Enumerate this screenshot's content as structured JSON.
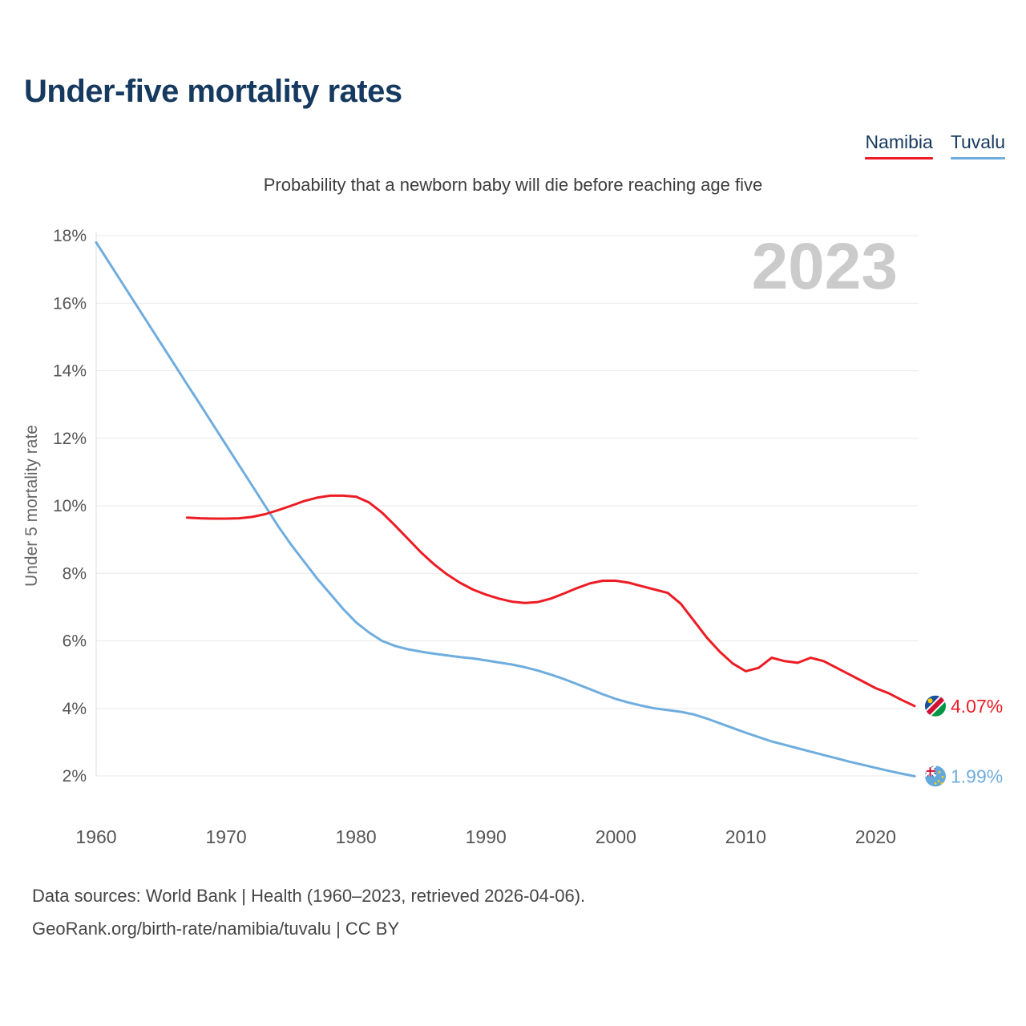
{
  "footer": {
    "line1": "Data sources: World Bank | Health (1960–2023, retrieved 2026-04-06).",
    "line2": "GeoRank.org/birth-rate/namibia/tuvalu | CC BY"
  },
  "chart_data": {
    "type": "line",
    "title": "Under-five mortality rates",
    "subtitle": "Probability that a newborn baby will die before reaching age five",
    "ylabel": "Under 5 mortality rate",
    "year_label": "2023",
    "xlim": [
      1960,
      2023
    ],
    "ylim": [
      2,
      18
    ],
    "x_ticks": [
      1960,
      1970,
      1980,
      1990,
      2000,
      2010,
      2020
    ],
    "y_ticks": [
      2,
      4,
      6,
      8,
      10,
      12,
      14,
      16,
      18
    ],
    "y_tick_suffix": "%",
    "grid": true,
    "legend_position": "top-right",
    "series": [
      {
        "name": "Namibia",
        "color": "#ed1c24",
        "start_year": 1967,
        "end_label": "4.07%",
        "values": [
          9.65,
          9.63,
          9.62,
          9.62,
          9.63,
          9.67,
          9.75,
          9.87,
          10.0,
          10.14,
          10.24,
          10.3,
          10.3,
          10.27,
          10.1,
          9.8,
          9.42,
          9.02,
          8.62,
          8.27,
          7.97,
          7.72,
          7.52,
          7.37,
          7.25,
          7.16,
          7.12,
          7.15,
          7.25,
          7.4,
          7.56,
          7.7,
          7.78,
          7.78,
          7.72,
          7.62,
          7.52,
          7.42,
          7.1,
          6.6,
          6.1,
          5.68,
          5.33,
          5.1,
          5.2,
          5.5,
          5.4,
          5.35,
          5.5,
          5.4,
          5.2,
          5.0,
          4.8,
          4.6,
          4.45,
          4.25,
          4.07
        ]
      },
      {
        "name": "Tuvalu",
        "color": "#6fadde",
        "start_year": 1960,
        "end_label": "1.99%",
        "values": [
          17.8,
          17.2,
          16.6,
          16.0,
          15.4,
          14.8,
          14.2,
          13.6,
          13.0,
          12.4,
          11.8,
          11.2,
          10.6,
          10.0,
          9.4,
          8.85,
          8.35,
          7.85,
          7.4,
          6.95,
          6.55,
          6.25,
          6.0,
          5.85,
          5.75,
          5.68,
          5.62,
          5.57,
          5.52,
          5.48,
          5.42,
          5.36,
          5.3,
          5.22,
          5.12,
          5.0,
          4.87,
          4.72,
          4.57,
          4.42,
          4.28,
          4.17,
          4.08,
          4.0,
          3.95,
          3.9,
          3.82,
          3.7,
          3.56,
          3.42,
          3.28,
          3.15,
          3.02,
          2.92,
          2.82,
          2.72,
          2.62,
          2.52,
          2.42,
          2.33,
          2.24,
          2.15,
          2.07,
          1.99
        ]
      }
    ]
  }
}
